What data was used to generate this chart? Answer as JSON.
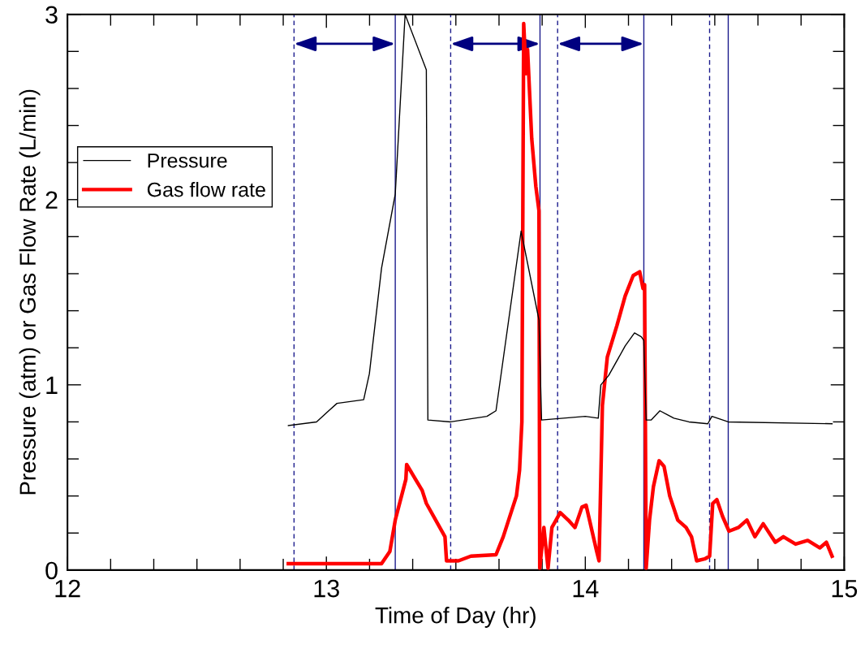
{
  "chart_data": {
    "type": "line",
    "xlabel": "Time of Day (hr)",
    "ylabel": "Pressure (atm) or Gas Flow Rate (L/min)",
    "xlim": [
      12,
      15
    ],
    "ylim": [
      0,
      3
    ],
    "xticks": [
      12,
      {
        "value": 12.1667,
        "label": null
      },
      {
        "value": 12.3333,
        "label": null
      },
      {
        "value": 12.5,
        "label": null
      },
      {
        "value": 12.6667,
        "label": null
      },
      {
        "value": 12.8333,
        "label": null
      },
      13,
      {
        "value": 13.1667,
        "label": null
      },
      {
        "value": 13.3333,
        "label": null
      },
      {
        "value": 13.5,
        "label": null
      },
      {
        "value": 13.6667,
        "label": null
      },
      {
        "value": 13.8333,
        "label": null
      },
      14,
      {
        "value": 14.1667,
        "label": null
      },
      {
        "value": 14.3333,
        "label": null
      },
      {
        "value": 14.5,
        "label": null
      },
      {
        "value": 14.6667,
        "label": null
      },
      {
        "value": 14.8333,
        "label": null
      },
      15
    ],
    "yticks": [
      0,
      {
        "value": 0.2,
        "label": null
      },
      {
        "value": 0.4,
        "label": null
      },
      {
        "value": 0.6,
        "label": null
      },
      {
        "value": 0.8,
        "label": null
      },
      1,
      {
        "value": 1.2,
        "label": null
      },
      {
        "value": 1.4,
        "label": null
      },
      {
        "value": 1.6,
        "label": null
      },
      {
        "value": 1.8,
        "label": null
      },
      2,
      {
        "value": 2.2,
        "label": null
      },
      {
        "value": 2.4,
        "label": null
      },
      {
        "value": 2.6,
        "label": null
      },
      {
        "value": 2.8,
        "label": null
      },
      3
    ],
    "grid": false,
    "legend": "top left",
    "marker": "none",
    "line_style": "solid",
    "series": [
      {
        "name": "Pressure",
        "color": "#000000",
        "x": [
          12.853,
          12.962,
          13.009,
          13.041,
          13.144,
          13.166,
          13.213,
          13.266,
          13.304,
          13.386,
          13.392,
          13.48,
          13.62,
          13.655,
          13.752,
          13.821,
          13.831,
          14.0,
          14.05,
          14.06,
          14.09,
          14.154,
          14.19,
          14.216,
          14.226,
          14.235,
          14.254,
          14.288,
          14.342,
          14.4,
          14.473,
          14.489,
          14.552,
          14.953
        ],
        "values": [
          0.78,
          0.8,
          0.86,
          0.9,
          0.92,
          1.06,
          1.63,
          2.03,
          3.0,
          2.7,
          0.81,
          0.8,
          0.83,
          0.86,
          1.83,
          1.35,
          0.81,
          0.83,
          0.82,
          1.0,
          1.05,
          1.21,
          1.28,
          1.26,
          1.24,
          0.81,
          0.81,
          0.86,
          0.82,
          0.8,
          0.79,
          0.83,
          0.8,
          0.79
        ]
      },
      {
        "name": "Gas flow rate",
        "color": "#ff0000",
        "x": [
          12.853,
          13.213,
          13.245,
          13.266,
          13.307,
          13.31,
          13.37,
          13.386,
          13.458,
          13.464,
          13.51,
          13.558,
          13.655,
          13.683,
          13.734,
          13.746,
          13.755,
          13.762,
          13.771,
          13.777,
          13.793,
          13.809,
          13.821,
          13.824,
          13.84,
          13.856,
          13.871,
          13.887,
          13.903,
          13.934,
          13.96,
          13.987,
          14.003,
          14.044,
          14.053,
          14.066,
          14.085,
          14.122,
          14.154,
          14.185,
          14.21,
          14.223,
          14.229,
          14.235,
          14.248,
          14.263,
          14.285,
          14.304,
          14.326,
          14.357,
          14.389,
          14.41,
          14.43,
          14.461,
          14.48,
          14.492,
          14.508,
          14.53,
          14.555,
          14.592,
          14.624,
          14.655,
          14.687,
          14.734,
          14.765,
          14.812,
          14.859,
          14.906,
          14.931,
          14.953
        ],
        "values": [
          0.035,
          0.035,
          0.1,
          0.27,
          0.49,
          0.57,
          0.43,
          0.36,
          0.18,
          0.05,
          0.05,
          0.075,
          0.083,
          0.18,
          0.4,
          0.54,
          0.8,
          2.95,
          2.68,
          2.81,
          2.33,
          2.07,
          1.94,
          0.01,
          0.23,
          0.01,
          0.23,
          0.27,
          0.31,
          0.27,
          0.23,
          0.34,
          0.35,
          0.1,
          0.05,
          0.89,
          1.15,
          1.32,
          1.48,
          1.59,
          1.61,
          1.52,
          1.54,
          0.01,
          0.27,
          0.45,
          0.59,
          0.56,
          0.4,
          0.27,
          0.23,
          0.18,
          0.05,
          0.06,
          0.075,
          0.36,
          0.38,
          0.29,
          0.21,
          0.23,
          0.27,
          0.18,
          0.25,
          0.15,
          0.18,
          0.14,
          0.16,
          0.12,
          0.15,
          0.075
        ]
      }
    ],
    "ref_lines": [
      {
        "axis": "x",
        "value": 12.875,
        "color": "#1a1a8c",
        "line_style": "dashed"
      },
      {
        "axis": "x",
        "value": 13.266,
        "color": "#1a1a8c",
        "line_style": "solid"
      },
      {
        "axis": "x",
        "value": 13.48,
        "color": "#1a1a8c",
        "line_style": "dashed"
      },
      {
        "axis": "x",
        "value": 13.825,
        "color": "#1a1a8c",
        "line_style": "solid"
      },
      {
        "axis": "x",
        "value": 13.893,
        "color": "#1a1a8c",
        "line_style": "dashed"
      },
      {
        "axis": "x",
        "value": 14.226,
        "color": "#1a1a8c",
        "line_style": "solid"
      },
      {
        "axis": "x",
        "value": 14.48,
        "color": "#1a1a8c",
        "line_style": "dashed"
      },
      {
        "axis": "x",
        "value": 14.552,
        "color": "#1a1a8c",
        "line_style": "solid"
      }
    ]
  }
}
